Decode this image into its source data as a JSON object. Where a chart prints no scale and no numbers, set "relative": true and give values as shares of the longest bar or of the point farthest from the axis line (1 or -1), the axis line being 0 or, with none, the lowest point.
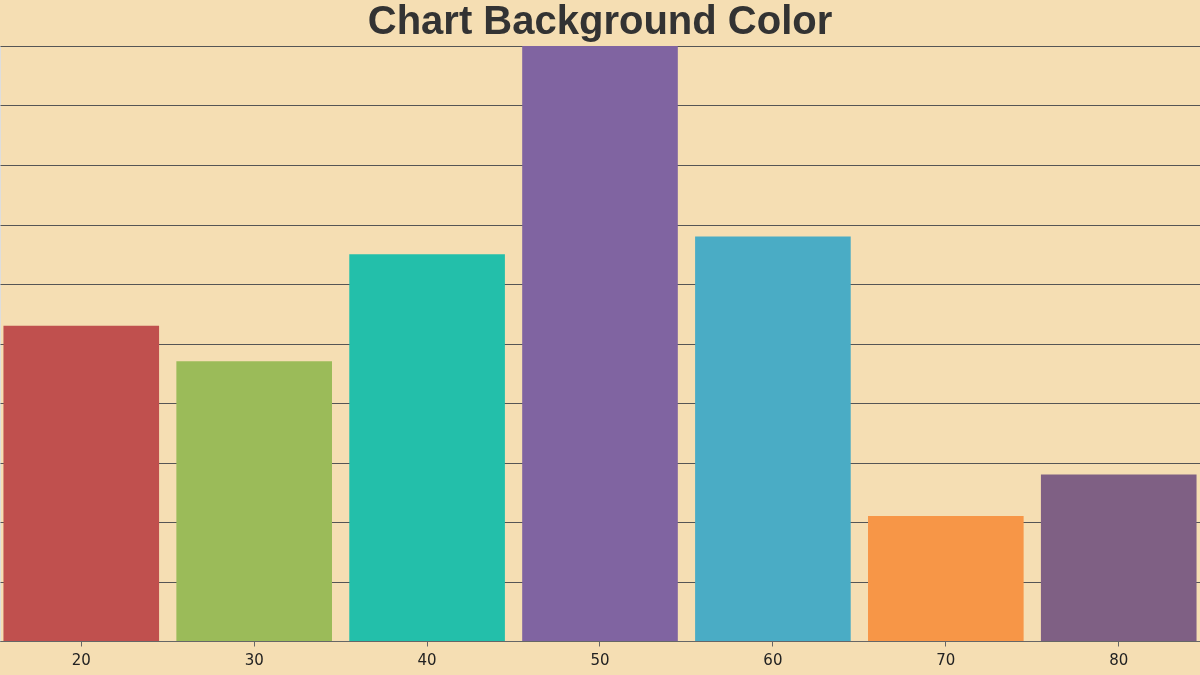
{
  "chart_data": {
    "type": "bar",
    "title": "Chart Background Color",
    "categories": [
      "20",
      "30",
      "40",
      "50",
      "60",
      "70",
      "80"
    ],
    "values": [
      0.53,
      0.47,
      0.65,
      1,
      0.68,
      0.21,
      0.28
    ],
    "colors": [
      "#c0504e",
      "#9bbb59",
      "#23bfaa",
      "#8064a1",
      "#4aacc5",
      "#f79647",
      "#7f6084"
    ],
    "relative": true,
    "grid": "y",
    "legend": false
  }
}
